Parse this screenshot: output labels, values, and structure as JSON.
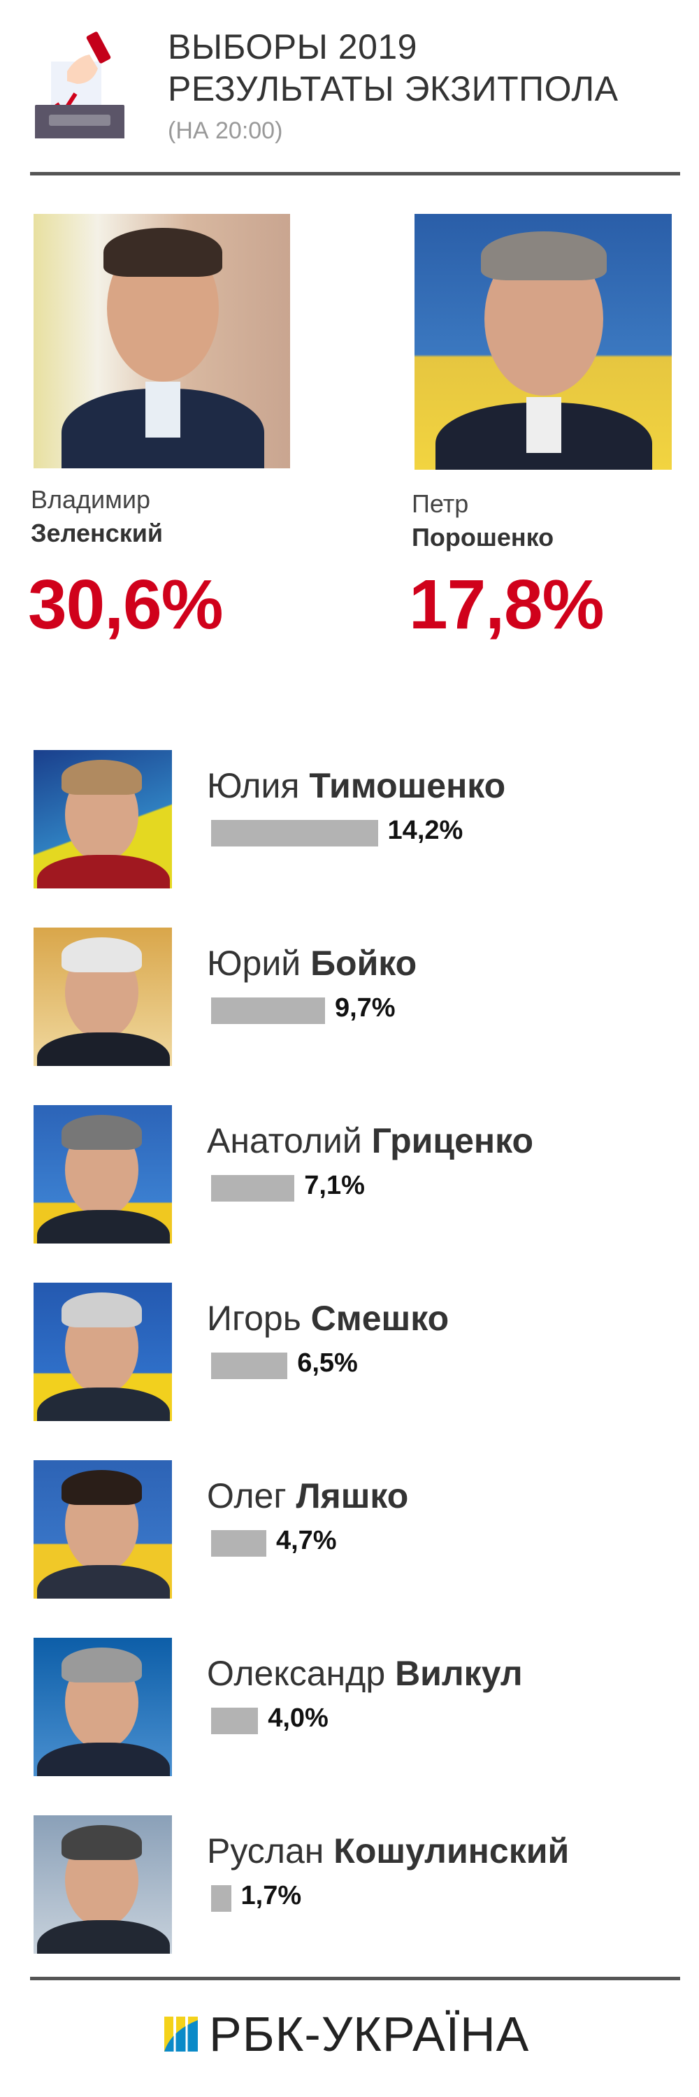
{
  "header": {
    "title_line1": "ВЫБОРЫ 2019",
    "title_line2": "РЕЗУЛЬТАТЫ ЭКЗИТПОЛА",
    "subtitle": "(НА 20:00)",
    "icon": "ballot-box-icon"
  },
  "colors": {
    "accent": "#d0011b",
    "bar": "#b3b3b3",
    "divider": "#555555",
    "flag_blue": "#1f5fb0",
    "flag_yellow": "#f4d21a"
  },
  "leaders": [
    {
      "first": "Владимир",
      "last": "Зеленский",
      "percent": "30,6%",
      "value": 30.6
    },
    {
      "first": "Петр",
      "last": "Порошенко",
      "percent": "17,8%",
      "value": 17.8
    }
  ],
  "candidates": [
    {
      "first": "Юлия",
      "last": "Тимошенко",
      "percent": "14,2%",
      "value": 14.2
    },
    {
      "first": "Юрий",
      "last": "Бойко",
      "percent": "9,7%",
      "value": 9.7
    },
    {
      "first": "Анатолий",
      "last": "Гриценко",
      "percent": "7,1%",
      "value": 7.1
    },
    {
      "first": "Игорь",
      "last": "Смешко",
      "percent": "6,5%",
      "value": 6.5
    },
    {
      "first": "Олег",
      "last": "Ляшко",
      "percent": "4,7%",
      "value": 4.7
    },
    {
      "first": "Олександр",
      "last": "Вилкул",
      "percent": "4,0%",
      "value": 4.0
    },
    {
      "first": "Руслан",
      "last": "Кошулинский",
      "percent": "1,7%",
      "value": 1.7
    }
  ],
  "footer": {
    "logo_text": "РБК-УКРАЇНА",
    "logo_icon": "rbc-ukraine-logo-icon"
  }
}
